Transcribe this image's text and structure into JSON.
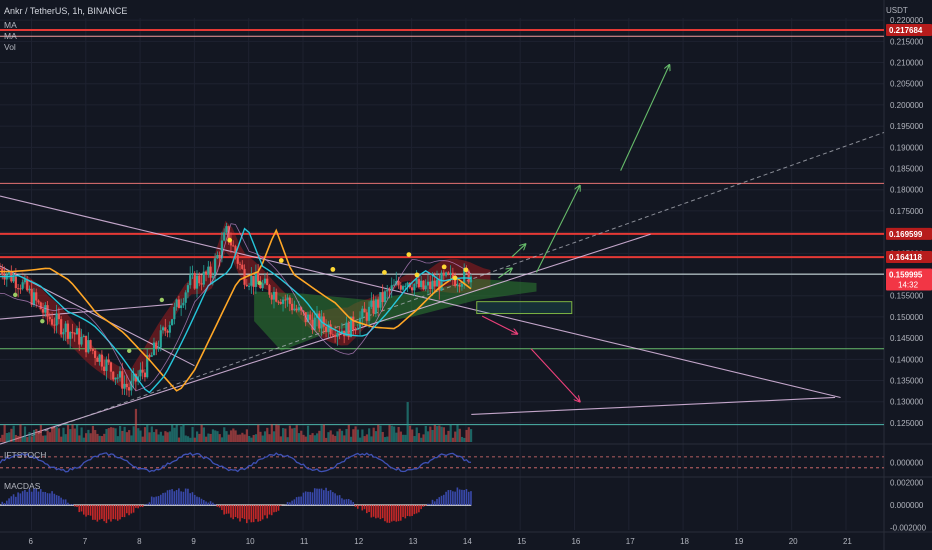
{
  "header": {
    "symbol_line": "Ankr / TetherUS, 1h, BINANCE",
    "indicators": [
      "MA",
      "MA",
      "Vol"
    ],
    "currency": "USDT"
  },
  "colors": {
    "background": "#131722",
    "grid": "#1e2230",
    "axis_text": "#b2b5be",
    "bull": "#26a69a",
    "bear": "#ef5350",
    "resistance_line": "#e53935",
    "support_line": "#b2dfdb",
    "trend_line": "#e1bee7",
    "ma_orange": "#ffa726",
    "ma_cyan": "#26c6da",
    "arrow_green": "#66bb6a",
    "arrow_pink": "#ec407a",
    "price_badge": "#f23645"
  },
  "chart_data": [
    {
      "type": "candlestick",
      "title": "Ankr / TetherUS, 1h, BINANCE",
      "y_unit": "USDT",
      "ylim": [
        0.1205,
        0.2205
      ],
      "xlim": [
        5.42,
        21.7
      ],
      "x_ticks": [
        "6",
        "7",
        "8",
        "9",
        "10",
        "11",
        "12",
        "13",
        "14",
        "15",
        "16",
        "17",
        "18",
        "19",
        "20",
        "21"
      ],
      "x_tick_values": [
        6,
        7,
        8,
        9,
        10,
        11,
        12,
        13,
        14,
        15,
        16,
        17,
        18,
        19,
        20,
        21
      ],
      "y_ticks": [
        0.125,
        0.13,
        0.135,
        0.14,
        0.145,
        0.15,
        0.155,
        0.16,
        0.165,
        0.17,
        0.175,
        0.18,
        0.185,
        0.19,
        0.195,
        0.2,
        0.205,
        0.21,
        0.215,
        0.22
      ],
      "y_tick_labels": [
        "0.125000",
        "0.130000",
        "0.135000",
        "0.140000",
        "0.145000",
        "0.150000",
        "0.155000",
        "0.160000",
        "0.165000",
        "0.170000",
        "0.175000",
        "0.180000",
        "0.185000",
        "0.190000",
        "0.195000",
        "0.200000",
        "0.205000",
        "0.210000",
        "0.215000",
        "0.220000"
      ],
      "price_labels": [
        {
          "value": 0.217684,
          "label": "0.217684",
          "color": "#b71c1c"
        },
        {
          "value": 0.169599,
          "label": "0.169599",
          "color": "#b71c1c"
        },
        {
          "value": 0.164118,
          "label": "0.164118",
          "color": "#b71c1c"
        },
        {
          "value": 0.159995,
          "label": "0.159995",
          "color": "#f23645",
          "countdown": "14:32"
        }
      ],
      "horizontal_levels": [
        {
          "value": 0.217684,
          "color": "#e53935",
          "width": 2
        },
        {
          "value": 0.2162,
          "color": "#ef9a9a",
          "width": 1
        },
        {
          "value": 0.1815,
          "color": "#e57373",
          "width": 1
        },
        {
          "value": 0.1696,
          "color": "#e53935",
          "width": 2
        },
        {
          "value": 0.1641,
          "color": "#e53935",
          "width": 2
        },
        {
          "value": 0.1601,
          "color": "#e0f2f1",
          "width": 1
        },
        {
          "value": 0.1425,
          "color": "#66bb6a",
          "width": 1
        },
        {
          "value": 0.1246,
          "color": "#4db6ac",
          "width": 1
        }
      ],
      "trend_lines": [
        {
          "from": [
            5.42,
            0.1785
          ],
          "to": [
            20.9,
            0.131
          ],
          "color": "#e1bee7"
        },
        {
          "from": [
            5.42,
            0.12
          ],
          "to": [
            17.4,
            0.1695
          ],
          "color": "#e1bee7"
        },
        {
          "from": [
            5.42,
            0.1495
          ],
          "to": [
            8.6,
            0.153
          ],
          "color": "#e1bee7"
        },
        {
          "from": [
            5.42,
            0.162
          ],
          "to": [
            9.0,
            0.1385
          ],
          "color": "#e1bee7"
        },
        {
          "from": [
            14.1,
            0.127
          ],
          "to": [
            20.8,
            0.131
          ],
          "color": "#e1bee7"
        }
      ],
      "projection_line": {
        "from": [
          6.0,
          0.122
        ],
        "to": [
          21.7,
          0.1935
        ],
        "dashed": true
      },
      "boxes": [
        {
          "x": [
            14.2,
            15.95
          ],
          "y": [
            0.1508,
            0.1536
          ],
          "color": "#26a69a"
        }
      ],
      "arrows_up": [
        {
          "from": [
            14.6,
            0.1592
          ],
          "to": [
            14.85,
            0.1615
          ]
        },
        {
          "from": [
            14.85,
            0.1642
          ],
          "to": [
            15.1,
            0.1672
          ]
        },
        {
          "from": [
            15.3,
            0.1605
          ],
          "to": [
            16.1,
            0.181
          ]
        },
        {
          "from": [
            16.85,
            0.1845
          ],
          "to": [
            17.75,
            0.2095
          ]
        }
      ],
      "arrows_down": [
        {
          "from": [
            14.3,
            0.1502
          ],
          "to": [
            14.95,
            0.146
          ]
        },
        {
          "from": [
            15.2,
            0.1425
          ],
          "to": [
            16.1,
            0.13
          ]
        }
      ],
      "markers_yellow": [
        [
          9.65,
          0.1681
        ],
        [
          10.6,
          0.1633
        ],
        [
          11.55,
          0.1612
        ],
        [
          12.5,
          0.1605
        ],
        [
          12.95,
          0.1647
        ],
        [
          13.6,
          0.1618
        ],
        [
          14.0,
          0.1611
        ],
        [
          13.1,
          0.1599
        ],
        [
          13.8,
          0.1592
        ]
      ],
      "markers_green": [
        [
          5.7,
          0.1552
        ],
        [
          6.2,
          0.149
        ],
        [
          7.8,
          0.142
        ],
        [
          8.4,
          0.154
        ],
        [
          10.2,
          0.158
        ]
      ]
    },
    {
      "type": "line",
      "title": "IFTSTOCH",
      "ylim": [
        -0.01,
        0.012
      ],
      "y_ticks": [
        0.0
      ],
      "y_tick_labels": [
        "0.000000"
      ]
    },
    {
      "type": "bar",
      "title": "MACDAS",
      "ylim": [
        -0.0022,
        0.0024
      ],
      "y_ticks": [
        0.002,
        0.0,
        -0.002
      ],
      "y_tick_labels": [
        "0.002000",
        "0.000000",
        "-0.002000"
      ]
    }
  ]
}
